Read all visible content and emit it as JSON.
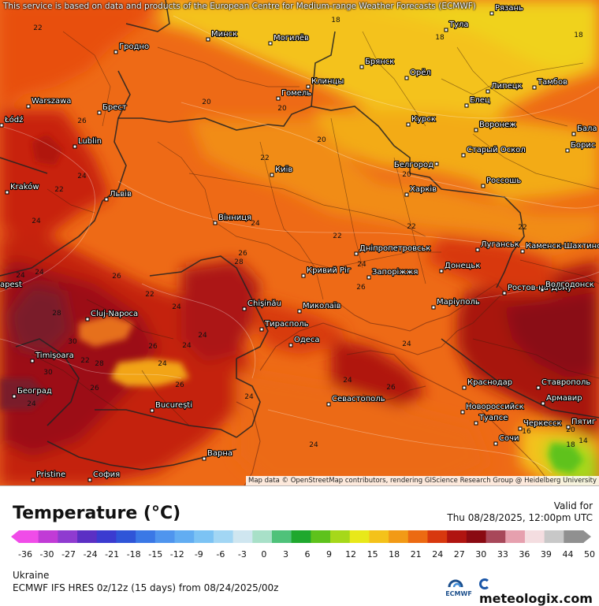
{
  "notice": "This service is based on data and products of the European Centre for Medium-range Weather Forecasts (ECMWF)",
  "attribution": "Map data © OpenStreetMap contributors, rendering GIScience Research Group @ Heidelberg University",
  "legend": {
    "title": "Temperature (°C)",
    "valid_label": "Valid for",
    "valid_time": "Thu 08/28/2025, 12:00pm UTC",
    "ticks": [
      "-36",
      "-30",
      "-27",
      "-24",
      "-21",
      "-18",
      "-15",
      "-12",
      "-9",
      "-6",
      "-3",
      "0",
      "3",
      "6",
      "9",
      "12",
      "15",
      "18",
      "21",
      "24",
      "27",
      "30",
      "33",
      "36",
      "39",
      "44",
      "50"
    ],
    "colors": [
      "#f04ce8",
      "#c13bd6",
      "#8f3bd0",
      "#5b2fc4",
      "#3b3bd0",
      "#2f55d8",
      "#3a78e6",
      "#4f95ee",
      "#62adf2",
      "#7cc3f4",
      "#a2d6f4",
      "#cfe6f0",
      "#a8e0c8",
      "#4fc27a",
      "#1fa82e",
      "#5ec21c",
      "#a6d81a",
      "#e8e81a",
      "#f4c21a",
      "#f29a16",
      "#ec6a12",
      "#d8380e",
      "#b01410",
      "#8a0a12",
      "#a8485a",
      "#e6a0ae",
      "#f4dde0",
      "#c8c8c8",
      "#909090"
    ]
  },
  "footer": {
    "region": "Ukraine",
    "model": "ECMWF IFS HRES 0z/12z (15 days) from 08/24/2025/00z",
    "brand": "meteologix.com",
    "ecmwf_label": "ECMWF"
  },
  "map": {
    "cities": [
      {
        "name": "Минск"
      },
      {
        "name": "Могилёв"
      },
      {
        "name": "Гродно"
      },
      {
        "name": "Тула"
      },
      {
        "name": "Рязань"
      },
      {
        "name": "Warszawa"
      },
      {
        "name": "Брест"
      },
      {
        "name": "Łódź"
      },
      {
        "name": "Lublin"
      },
      {
        "name": "Kraków"
      },
      {
        "name": "Брянск"
      },
      {
        "name": "Клинцы"
      },
      {
        "name": "Гомель"
      },
      {
        "name": "Орёл"
      },
      {
        "name": "Липецк"
      },
      {
        "name": "Тамбов"
      },
      {
        "name": "Елец"
      },
      {
        "name": "Курск"
      },
      {
        "name": "Воронеж"
      },
      {
        "name": "Старый Оскол"
      },
      {
        "name": "Бала"
      },
      {
        "name": "Борис"
      },
      {
        "name": "Белгород"
      },
      {
        "name": "Київ"
      },
      {
        "name": "Харків"
      },
      {
        "name": "Россошь"
      },
      {
        "name": "Львів"
      },
      {
        "name": "Вінниця"
      },
      {
        "name": "Дніпропетровськ"
      },
      {
        "name": "Луганськ"
      },
      {
        "name": "Каменск-Шахтинский"
      },
      {
        "name": "Кривий Ріг"
      },
      {
        "name": "Запоріжжя"
      },
      {
        "name": "Донецьк"
      },
      {
        "name": "Ростов-на-Дону"
      },
      {
        "name": "Волгодонск"
      },
      {
        "name": "Chișinău"
      },
      {
        "name": "Миколаїв"
      },
      {
        "name": "Маріуполь"
      },
      {
        "name": "Cluj-Napoca"
      },
      {
        "name": "Тирасполь"
      },
      {
        "name": "Одеса"
      },
      {
        "name": "Timișoara"
      },
      {
        "name": "Краснодар"
      },
      {
        "name": "Ставрополь"
      },
      {
        "name": "Армавир"
      },
      {
        "name": "Београд"
      },
      {
        "name": "București"
      },
      {
        "name": "Севастополь"
      },
      {
        "name": "Новороссийск"
      },
      {
        "name": "Туапсе"
      },
      {
        "name": "Черкесск"
      },
      {
        "name": "Пятиг"
      },
      {
        "name": "Сочи"
      },
      {
        "name": "Варна"
      },
      {
        "name": "Pristine"
      },
      {
        "name": "София"
      },
      {
        "name": "apest"
      }
    ],
    "isotherm_labels": [
      "22",
      "18",
      "18",
      "18",
      "20",
      "20",
      "26",
      "20",
      "22",
      "24",
      "20",
      "22",
      "24",
      "24",
      "26",
      "22",
      "22",
      "26",
      "24",
      "28",
      "24",
      "22",
      "24",
      "26",
      "24",
      "24",
      "26",
      "26",
      "24",
      "24",
      "24",
      "26",
      "24",
      "24",
      "20",
      "16",
      "18",
      "14",
      "24",
      "22",
      "30",
      "28",
      "26",
      "30",
      "22",
      "28",
      "24"
    ]
  }
}
